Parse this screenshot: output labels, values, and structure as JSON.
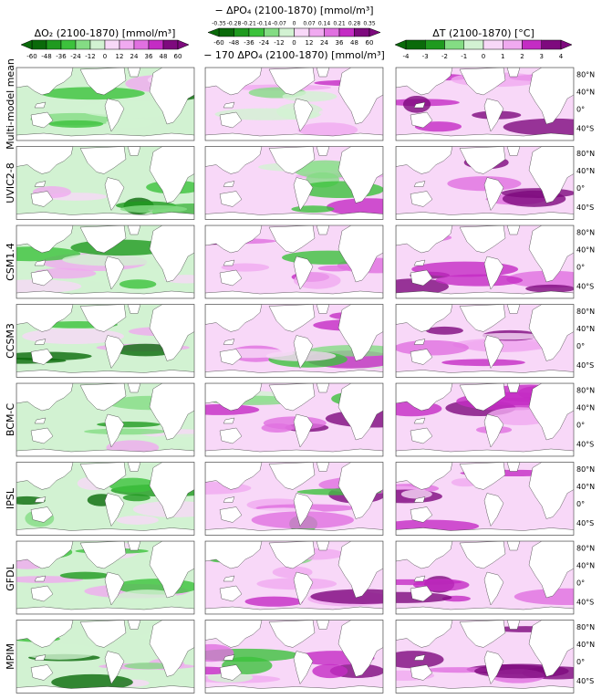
{
  "colorbars": [
    {
      "title": "ΔO₂ (2100-1870) [mmol/m³]",
      "ticks": [
        -60,
        -48,
        -36,
        -24,
        -12,
        0,
        12,
        24,
        36,
        48,
        60
      ]
    },
    {
      "title": "− ΔPO₄ (2100-1870) [mmol/m³]",
      "ticks_top": [
        -0.35,
        -0.28,
        -0.21,
        -0.14,
        -0.07,
        0,
        0.07,
        0.14,
        0.21,
        0.28,
        0.35
      ],
      "ticks": [
        -60,
        -48,
        -36,
        -24,
        -12,
        0,
        12,
        24,
        36,
        48,
        60
      ],
      "subtitle": "− 170 ΔPO₄ (2100-1870) [mmol/m³]"
    },
    {
      "title": "ΔT (2100-1870) [°C]",
      "ticks": [
        -4,
        -3,
        -2,
        -1,
        0,
        1,
        2,
        3,
        4
      ]
    }
  ],
  "colors": [
    "#0a6a0a",
    "#1f9a1f",
    "#3cc23c",
    "#84dc84",
    "#d2f2d2",
    "#f8d8f8",
    "#f0aaf0",
    "#e070e0",
    "#c42cc4",
    "#7e0a7e"
  ],
  "rows": [
    "Multi-model mean",
    "UVIC2-8",
    "CSM1.4",
    "CCSM3",
    "BCM-C",
    "IPSL",
    "GFDL",
    "MPIM"
  ],
  "lat_labels": [
    "80°N",
    "40°N",
    "0°",
    "40°S"
  ]
}
